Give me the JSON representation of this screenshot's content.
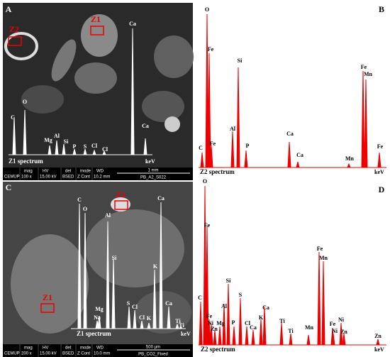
{
  "panels": [
    {
      "letter": "A",
      "zones": [
        "Z1",
        "Z2"
      ],
      "spectrum_label": "Z1 spectrum",
      "unit": "keV",
      "peaks": [
        "Ca",
        "O",
        "C",
        "Mg",
        "Al",
        "Si",
        "P",
        "S",
        "Cl",
        "Cl",
        "Ca"
      ],
      "infobar": {
        "logo": "CEMUP",
        "headers": [
          "mag",
          "HV",
          "det",
          "mode",
          "WD"
        ],
        "values": [
          "100 x",
          "15.00 kV",
          "BSED",
          "Z Cont",
          "10.2 mm"
        ],
        "scale": "1 mm",
        "file": "PB_A2_S022"
      }
    },
    {
      "letter": "B",
      "zones": [],
      "spectrum_label": "Z2 spectrum",
      "unit": "keV",
      "peaks": [
        "O",
        "Fe",
        "Si",
        "Al",
        "C",
        "Fe",
        "P",
        "Ca",
        "Ca",
        "Mn",
        "Fe",
        "Mn",
        "Fe"
      ]
    },
    {
      "letter": "C",
      "zones": [
        "Z2",
        "Z1"
      ],
      "spectrum_label": "Z1 spectrum",
      "unit": "keV",
      "peaks": [
        "C",
        "O",
        "Al",
        "Ca",
        "Si",
        "K",
        "Mg",
        "Na",
        "S",
        "Cl",
        "Cl",
        "K",
        "Ca",
        "Ti",
        "Ti"
      ],
      "infobar": {
        "logo": "CEMUP",
        "headers": [
          "mag",
          "HV",
          "det",
          "mode",
          "WD"
        ],
        "values": [
          "200 x",
          "15.00 kV",
          "BSED",
          "Z Cont",
          "10.0 mm"
        ],
        "scale": "500 µm",
        "file": "PB_CO2_Fixed"
      }
    },
    {
      "letter": "D",
      "zones": [],
      "spectrum_label": "Z2 spectrum",
      "unit": "keV",
      "peaks": [
        "O",
        "Fe",
        "C",
        "Fe",
        "Ni",
        "Mg",
        "Zn",
        "Al",
        "Si",
        "P",
        "S",
        "Cl",
        "Ca",
        "K",
        "Ca",
        "Ti",
        "Ti",
        "Fe",
        "Mn",
        "Mn",
        "Fe",
        "Ni",
        "Ni",
        "Zn",
        "Zn"
      ]
    }
  ]
}
